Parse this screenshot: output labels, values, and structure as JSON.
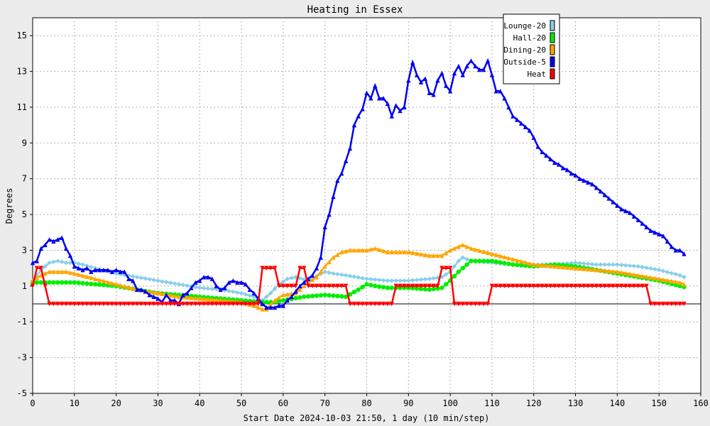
{
  "chart_data": {
    "type": "line",
    "title": "Heating in Essex",
    "xlabel": "Start Date 2024-10-03 21:50, 1 day (10 min/step)",
    "ylabel": "Degrees",
    "xlim": [
      0,
      160
    ],
    "ylim": [
      -5,
      16
    ],
    "x_ticks": [
      0,
      10,
      20,
      30,
      40,
      50,
      60,
      70,
      80,
      90,
      100,
      110,
      120,
      130,
      140,
      150,
      160
    ],
    "y_ticks": [
      -5,
      -3,
      -1,
      1,
      3,
      5,
      7,
      9,
      11,
      13,
      15
    ],
    "grid": true,
    "legend_position": "top-right",
    "background_color": "#ececec",
    "plot_background": "#ffffff",
    "series": [
      {
        "name": "Lounge-20",
        "color": "#87ceeb",
        "marker": "diamond",
        "points": [
          [
            0,
            1.3
          ],
          [
            2,
            1.9
          ],
          [
            4,
            2.3
          ],
          [
            6,
            2.4
          ],
          [
            8,
            2.3
          ],
          [
            10,
            2.3
          ],
          [
            12,
            2.2
          ],
          [
            15,
            2.0
          ],
          [
            20,
            1.7
          ],
          [
            25,
            1.5
          ],
          [
            30,
            1.3
          ],
          [
            35,
            1.1
          ],
          [
            40,
            0.9
          ],
          [
            45,
            0.8
          ],
          [
            50,
            0.6
          ],
          [
            53,
            0.4
          ],
          [
            55,
            0.2
          ],
          [
            57,
            0.6
          ],
          [
            59,
            1.1
          ],
          [
            61,
            1.4
          ],
          [
            63,
            1.5
          ],
          [
            66,
            1.3
          ],
          [
            70,
            1.8
          ],
          [
            72,
            1.7
          ],
          [
            75,
            1.6
          ],
          [
            80,
            1.4
          ],
          [
            85,
            1.3
          ],
          [
            90,
            1.3
          ],
          [
            95,
            1.4
          ],
          [
            98,
            1.5
          ],
          [
            100,
            1.8
          ],
          [
            102,
            2.4
          ],
          [
            103,
            2.6
          ],
          [
            105,
            2.4
          ],
          [
            110,
            2.3
          ],
          [
            115,
            2.2
          ],
          [
            120,
            2.2
          ],
          [
            125,
            2.2
          ],
          [
            130,
            2.3
          ],
          [
            135,
            2.2
          ],
          [
            140,
            2.2
          ],
          [
            145,
            2.1
          ],
          [
            150,
            1.9
          ],
          [
            155,
            1.6
          ],
          [
            156,
            1.5
          ]
        ]
      },
      {
        "name": "Hall-20",
        "color": "#00ee00",
        "marker": "circle",
        "points": [
          [
            0,
            1.2
          ],
          [
            5,
            1.2
          ],
          [
            10,
            1.2
          ],
          [
            15,
            1.1
          ],
          [
            20,
            1.0
          ],
          [
            25,
            0.8
          ],
          [
            30,
            0.6
          ],
          [
            35,
            0.5
          ],
          [
            40,
            0.4
          ],
          [
            45,
            0.3
          ],
          [
            50,
            0.2
          ],
          [
            55,
            0.1
          ],
          [
            58,
            0.1
          ],
          [
            60,
            0.2
          ],
          [
            65,
            0.4
          ],
          [
            70,
            0.5
          ],
          [
            75,
            0.4
          ],
          [
            78,
            0.8
          ],
          [
            80,
            1.1
          ],
          [
            82,
            1.0
          ],
          [
            85,
            0.9
          ],
          [
            90,
            0.9
          ],
          [
            95,
            0.8
          ],
          [
            98,
            0.9
          ],
          [
            100,
            1.3
          ],
          [
            102,
            1.8
          ],
          [
            105,
            2.4
          ],
          [
            110,
            2.4
          ],
          [
            115,
            2.2
          ],
          [
            120,
            2.1
          ],
          [
            125,
            2.2
          ],
          [
            130,
            2.1
          ],
          [
            135,
            1.9
          ],
          [
            140,
            1.7
          ],
          [
            145,
            1.5
          ],
          [
            150,
            1.3
          ],
          [
            155,
            1.0
          ],
          [
            156,
            0.95
          ]
        ]
      },
      {
        "name": "Dining-20",
        "color": "#ffa500",
        "marker": "triangle",
        "points": [
          [
            0,
            1.3
          ],
          [
            2,
            1.6
          ],
          [
            4,
            1.8
          ],
          [
            8,
            1.8
          ],
          [
            10,
            1.7
          ],
          [
            15,
            1.4
          ],
          [
            20,
            1.1
          ],
          [
            25,
            0.8
          ],
          [
            30,
            0.6
          ],
          [
            35,
            0.4
          ],
          [
            40,
            0.3
          ],
          [
            45,
            0.2
          ],
          [
            50,
            0.1
          ],
          [
            53,
            -0.1
          ],
          [
            55,
            -0.3
          ],
          [
            56,
            -0.3
          ],
          [
            58,
            0.2
          ],
          [
            60,
            0.5
          ],
          [
            63,
            0.6
          ],
          [
            66,
            1.2
          ],
          [
            68,
            1.5
          ],
          [
            70,
            2.1
          ],
          [
            72,
            2.6
          ],
          [
            74,
            2.9
          ],
          [
            76,
            3.0
          ],
          [
            80,
            3.0
          ],
          [
            82,
            3.1
          ],
          [
            85,
            2.9
          ],
          [
            90,
            2.9
          ],
          [
            95,
            2.7
          ],
          [
            98,
            2.7
          ],
          [
            100,
            3.0
          ],
          [
            102,
            3.2
          ],
          [
            103,
            3.3
          ],
          [
            105,
            3.1
          ],
          [
            110,
            2.8
          ],
          [
            115,
            2.5
          ],
          [
            120,
            2.2
          ],
          [
            125,
            2.1
          ],
          [
            130,
            2.0
          ],
          [
            135,
            1.9
          ],
          [
            140,
            1.8
          ],
          [
            145,
            1.6
          ],
          [
            150,
            1.4
          ],
          [
            155,
            1.2
          ],
          [
            156,
            1.1
          ]
        ]
      },
      {
        "name": "Outside-5",
        "color": "#0000ee",
        "marker": "triangle",
        "points": [
          [
            0,
            2.3
          ],
          [
            1,
            2.4
          ],
          [
            2,
            3.1
          ],
          [
            3,
            3.3
          ],
          [
            4,
            3.6
          ],
          [
            5,
            3.5
          ],
          [
            6,
            3.6
          ],
          [
            7,
            3.7
          ],
          [
            8,
            3.1
          ],
          [
            9,
            2.7
          ],
          [
            10,
            2.1
          ],
          [
            11,
            2.0
          ],
          [
            12,
            1.9
          ],
          [
            13,
            2.0
          ],
          [
            14,
            1.8
          ],
          [
            15,
            1.9
          ],
          [
            16,
            1.9
          ],
          [
            17,
            1.9
          ],
          [
            18,
            1.9
          ],
          [
            19,
            1.8
          ],
          [
            20,
            1.9
          ],
          [
            21,
            1.8
          ],
          [
            22,
            1.8
          ],
          [
            23,
            1.4
          ],
          [
            24,
            1.3
          ],
          [
            25,
            0.8
          ],
          [
            26,
            0.8
          ],
          [
            27,
            0.7
          ],
          [
            28,
            0.5
          ],
          [
            29,
            0.4
          ],
          [
            30,
            0.3
          ],
          [
            31,
            0.1
          ],
          [
            32,
            0.5
          ],
          [
            33,
            0.2
          ],
          [
            34,
            0.2
          ],
          [
            35,
            0.0
          ],
          [
            36,
            0.5
          ],
          [
            37,
            0.6
          ],
          [
            38,
            0.9
          ],
          [
            39,
            1.2
          ],
          [
            40,
            1.3
          ],
          [
            41,
            1.5
          ],
          [
            42,
            1.5
          ],
          [
            43,
            1.4
          ],
          [
            44,
            1.0
          ],
          [
            45,
            0.8
          ],
          [
            46,
            0.9
          ],
          [
            47,
            1.2
          ],
          [
            48,
            1.3
          ],
          [
            49,
            1.2
          ],
          [
            50,
            1.2
          ],
          [
            51,
            1.1
          ],
          [
            52,
            0.8
          ],
          [
            53,
            0.6
          ],
          [
            54,
            0.3
          ],
          [
            55,
            0.0
          ],
          [
            56,
            -0.2
          ],
          [
            57,
            -0.2
          ],
          [
            58,
            -0.2
          ],
          [
            59,
            -0.1
          ],
          [
            60,
            -0.1
          ],
          [
            61,
            0.2
          ],
          [
            62,
            0.4
          ],
          [
            63,
            0.7
          ],
          [
            64,
            1.0
          ],
          [
            65,
            1.2
          ],
          [
            66,
            1.4
          ],
          [
            67,
            1.6
          ],
          [
            68,
            2.0
          ],
          [
            69,
            2.6
          ],
          [
            70,
            4.3
          ],
          [
            71,
            5.0
          ],
          [
            72,
            6.0
          ],
          [
            73,
            6.9
          ],
          [
            74,
            7.3
          ],
          [
            75,
            8.0
          ],
          [
            76,
            8.7
          ],
          [
            77,
            10.0
          ],
          [
            78,
            10.5
          ],
          [
            79,
            10.9
          ],
          [
            80,
            11.8
          ],
          [
            81,
            11.5
          ],
          [
            82,
            12.2
          ],
          [
            83,
            11.5
          ],
          [
            84,
            11.5
          ],
          [
            85,
            11.2
          ],
          [
            86,
            10.5
          ],
          [
            87,
            11.1
          ],
          [
            88,
            10.8
          ],
          [
            89,
            11.0
          ],
          [
            90,
            12.5
          ],
          [
            91,
            13.5
          ],
          [
            92,
            12.8
          ],
          [
            93,
            12.4
          ],
          [
            94,
            12.6
          ],
          [
            95,
            11.8
          ],
          [
            96,
            11.7
          ],
          [
            97,
            12.5
          ],
          [
            98,
            12.9
          ],
          [
            99,
            12.2
          ],
          [
            100,
            11.9
          ],
          [
            101,
            12.9
          ],
          [
            102,
            13.3
          ],
          [
            103,
            12.8
          ],
          [
            104,
            13.3
          ],
          [
            105,
            13.6
          ],
          [
            106,
            13.3
          ],
          [
            107,
            13.1
          ],
          [
            108,
            13.1
          ],
          [
            109,
            13.6
          ],
          [
            110,
            12.8
          ],
          [
            111,
            11.9
          ],
          [
            112,
            11.9
          ],
          [
            113,
            11.5
          ],
          [
            114,
            11.0
          ],
          [
            115,
            10.5
          ],
          [
            116,
            10.3
          ],
          [
            117,
            10.1
          ],
          [
            118,
            9.9
          ],
          [
            119,
            9.7
          ],
          [
            120,
            9.3
          ],
          [
            121,
            8.8
          ],
          [
            122,
            8.5
          ],
          [
            123,
            8.3
          ],
          [
            124,
            8.1
          ],
          [
            125,
            7.9
          ],
          [
            126,
            7.8
          ],
          [
            127,
            7.6
          ],
          [
            128,
            7.5
          ],
          [
            129,
            7.3
          ],
          [
            130,
            7.2
          ],
          [
            131,
            7.0
          ],
          [
            132,
            6.9
          ],
          [
            133,
            6.8
          ],
          [
            134,
            6.7
          ],
          [
            135,
            6.5
          ],
          [
            136,
            6.3
          ],
          [
            137,
            6.1
          ],
          [
            138,
            5.9
          ],
          [
            139,
            5.7
          ],
          [
            140,
            5.5
          ],
          [
            141,
            5.3
          ],
          [
            142,
            5.2
          ],
          [
            143,
            5.1
          ],
          [
            144,
            4.9
          ],
          [
            145,
            4.7
          ],
          [
            146,
            4.5
          ],
          [
            147,
            4.3
          ],
          [
            148,
            4.1
          ],
          [
            149,
            4.0
          ],
          [
            150,
            3.9
          ],
          [
            151,
            3.8
          ],
          [
            152,
            3.5
          ],
          [
            153,
            3.2
          ],
          [
            154,
            3.0
          ],
          [
            155,
            3.0
          ],
          [
            156,
            2.8
          ]
        ]
      },
      {
        "name": "Heat",
        "color": "#ff0000",
        "marker": "triangle-down",
        "points": [
          [
            0,
            1.0
          ],
          [
            1,
            2.0
          ],
          [
            2,
            2.0
          ],
          [
            3,
            1.0
          ],
          [
            4,
            0.0
          ],
          [
            54,
            0.0
          ],
          [
            55,
            2.0
          ],
          [
            58,
            2.0
          ],
          [
            59,
            1.0
          ],
          [
            63,
            1.0
          ],
          [
            64,
            2.0
          ],
          [
            65,
            2.0
          ],
          [
            66,
            1.0
          ],
          [
            75,
            1.0
          ],
          [
            76,
            0.0
          ],
          [
            86,
            0.0
          ],
          [
            87,
            1.0
          ],
          [
            97,
            1.0
          ],
          [
            98,
            2.0
          ],
          [
            100,
            2.0
          ],
          [
            101,
            0.0
          ],
          [
            109,
            0.0
          ],
          [
            110,
            1.0
          ],
          [
            147,
            1.0
          ],
          [
            148,
            0.0
          ],
          [
            156,
            0.0
          ]
        ]
      }
    ]
  }
}
